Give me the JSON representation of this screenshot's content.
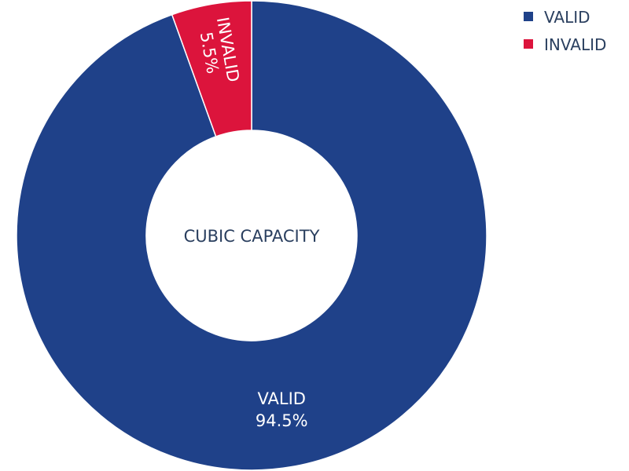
{
  "chart_data": {
    "type": "pie",
    "hole": true,
    "center_label": "CUBIC CAPACITY",
    "slices": [
      {
        "label": "VALID",
        "value": 94.5,
        "text": "94.5%",
        "color": "#1f4189"
      },
      {
        "label": "INVALID",
        "value": 5.5,
        "text": "5.5%",
        "color": "#dc143c"
      }
    ],
    "legend": {
      "placement": "top-right",
      "entries": [
        "VALID",
        "INVALID"
      ]
    }
  }
}
